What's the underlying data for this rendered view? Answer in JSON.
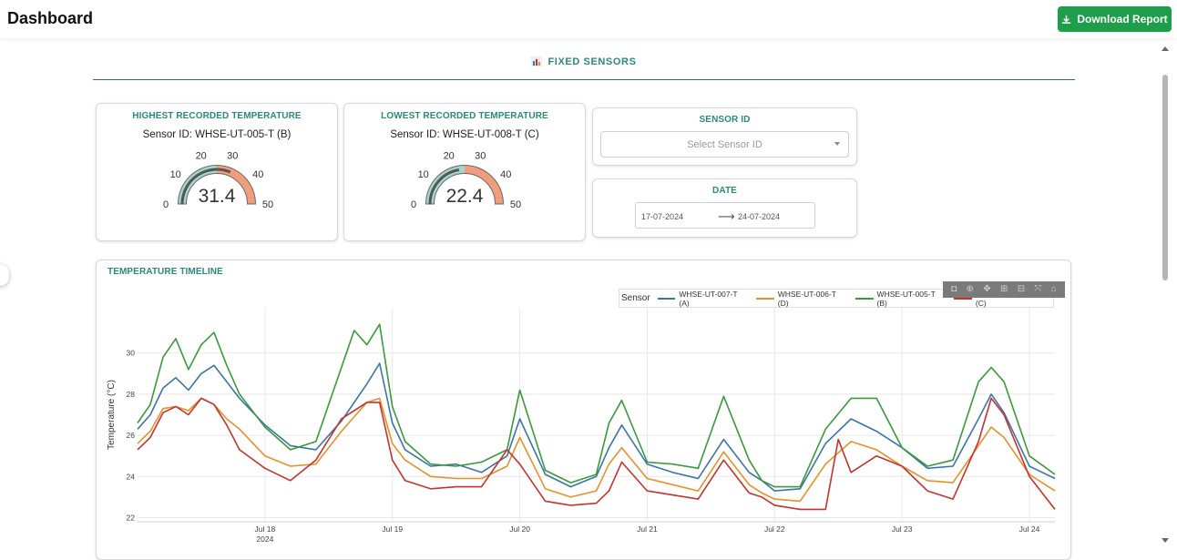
{
  "header": {
    "title": "Dashboard",
    "download_label": "Download Report"
  },
  "section": {
    "title": "FIXED SENSORS",
    "icon": "bar-chart-icon"
  },
  "highest_card": {
    "title": "HIGHEST RECORDED TEMPERATURE",
    "sensor": "Sensor ID: WHSE-UT-005-T (B)",
    "value": "31.4",
    "value_num": 31.4,
    "ticks": [
      "0",
      "10",
      "20",
      "30",
      "40",
      "50"
    ]
  },
  "lowest_card": {
    "title": "LOWEST RECORDED TEMPERATURE",
    "sensor": "Sensor ID: WHSE-UT-008-T (C)",
    "value": "22.4",
    "value_num": 22.4,
    "ticks": [
      "0",
      "10",
      "20",
      "30",
      "40",
      "50"
    ]
  },
  "gauge_colors": {
    "low": "#a6d5cc",
    "high": "#f29c7e",
    "bar": "#555555"
  },
  "sensor_filter": {
    "title": "SENSOR ID",
    "placeholder": "Select Sensor ID"
  },
  "date_filter": {
    "title": "DATE",
    "start": "17-07-2024",
    "end": "24-07-2024"
  },
  "timeline": {
    "title": "TEMPERATURE TIMELINE",
    "legend_title": "Sensor",
    "series": [
      {
        "name": "WHSE-UT-007-T (A)",
        "color": "#3b75a8"
      },
      {
        "name": "WHSE-UT-006-T (D)",
        "color": "#e8902a"
      },
      {
        "name": "WHSE-UT-005-T (B)",
        "color": "#3a9a3a"
      },
      {
        "name": "WHSE-UT-008-T (C)",
        "color": "#c4332c"
      }
    ],
    "modebar_icons": [
      "camera-icon",
      "zoom-icon",
      "pan-icon",
      "zoom-in-icon",
      "zoom-out-icon",
      "autoscale-icon",
      "home-icon"
    ]
  },
  "chart_data": {
    "type": "line",
    "ylabel": "Temperature (°C)",
    "xlabel": "",
    "ylim": [
      21.8,
      32.2
    ],
    "yticks": [
      22,
      24,
      26,
      28,
      30
    ],
    "xlim": [
      17.0,
      24.2
    ],
    "xticks": [
      {
        "value": 18.0,
        "label": "Jul 18",
        "sub": "2024"
      },
      {
        "value": 19.0,
        "label": "Jul 19",
        "sub": ""
      },
      {
        "value": 20.0,
        "label": "Jul 20",
        "sub": ""
      },
      {
        "value": 21.0,
        "label": "Jul 21",
        "sub": ""
      },
      {
        "value": 22.0,
        "label": "Jul 22",
        "sub": ""
      },
      {
        "value": 23.0,
        "label": "Jul 23",
        "sub": ""
      },
      {
        "value": 24.0,
        "label": "Jul 24",
        "sub": ""
      }
    ],
    "grid": true,
    "legend": "top-right",
    "series": [
      {
        "name": "WHSE-UT-007-T (A)",
        "color": "#3b75a8",
        "x": [
          17.0,
          17.1,
          17.2,
          17.3,
          17.4,
          17.5,
          17.6,
          17.7,
          17.8,
          18.0,
          18.2,
          18.4,
          18.6,
          18.8,
          18.9,
          19.0,
          19.1,
          19.3,
          19.5,
          19.7,
          19.9,
          20.0,
          20.2,
          20.4,
          20.6,
          20.7,
          20.8,
          21.0,
          21.2,
          21.4,
          21.6,
          21.8,
          21.9,
          22.0,
          22.2,
          22.4,
          22.6,
          22.8,
          23.0,
          23.2,
          23.4,
          23.6,
          23.7,
          23.8,
          24.0,
          24.2
        ],
        "y": [
          26.3,
          27.0,
          28.3,
          28.8,
          28.2,
          29.0,
          29.4,
          28.6,
          27.8,
          26.5,
          25.5,
          25.3,
          26.7,
          28.5,
          29.5,
          26.6,
          25.3,
          24.5,
          24.6,
          24.2,
          25.0,
          26.8,
          24.1,
          23.5,
          24.0,
          25.4,
          26.5,
          24.6,
          24.2,
          23.9,
          25.8,
          24.2,
          23.8,
          23.3,
          23.4,
          25.6,
          26.8,
          26.2,
          25.4,
          24.4,
          24.5,
          26.8,
          28.0,
          27.1,
          24.5,
          23.9
        ]
      },
      {
        "name": "WHSE-UT-006-T (D)",
        "color": "#e8902a",
        "x": [
          17.0,
          17.1,
          17.2,
          17.3,
          17.4,
          17.5,
          17.6,
          17.7,
          17.8,
          18.0,
          18.2,
          18.4,
          18.6,
          18.8,
          18.9,
          19.0,
          19.1,
          19.3,
          19.5,
          19.7,
          19.9,
          20.0,
          20.2,
          20.4,
          20.6,
          20.7,
          20.8,
          21.0,
          21.2,
          21.4,
          21.6,
          21.8,
          21.9,
          22.0,
          22.2,
          22.4,
          22.6,
          22.8,
          23.0,
          23.2,
          23.4,
          23.6,
          23.7,
          23.8,
          24.0,
          24.2
        ],
        "y": [
          25.6,
          26.2,
          27.3,
          27.4,
          27.2,
          27.8,
          27.5,
          26.8,
          26.3,
          25.0,
          24.5,
          24.6,
          26.2,
          27.6,
          27.8,
          25.6,
          24.8,
          24.0,
          23.9,
          23.9,
          24.5,
          25.9,
          23.4,
          23.0,
          23.3,
          24.6,
          25.4,
          23.9,
          23.6,
          23.3,
          25.2,
          23.6,
          23.2,
          22.9,
          22.8,
          24.6,
          25.7,
          25.3,
          24.5,
          23.8,
          23.7,
          25.5,
          26.4,
          25.9,
          24.1,
          23.3
        ]
      },
      {
        "name": "WHSE-UT-005-T (B)",
        "color": "#3a9a3a",
        "x": [
          17.0,
          17.1,
          17.2,
          17.3,
          17.4,
          17.5,
          17.6,
          17.7,
          17.8,
          18.0,
          18.2,
          18.4,
          18.6,
          18.7,
          18.8,
          18.9,
          19.0,
          19.1,
          19.3,
          19.5,
          19.7,
          19.9,
          20.0,
          20.2,
          20.4,
          20.6,
          20.7,
          20.8,
          21.0,
          21.2,
          21.4,
          21.6,
          21.8,
          21.9,
          22.0,
          22.2,
          22.4,
          22.6,
          22.8,
          23.0,
          23.2,
          23.4,
          23.6,
          23.7,
          23.8,
          24.0,
          24.2
        ],
        "y": [
          26.6,
          27.5,
          29.8,
          30.7,
          29.2,
          30.4,
          31.0,
          29.4,
          28.0,
          26.4,
          25.3,
          25.7,
          29.3,
          31.1,
          30.4,
          31.4,
          27.4,
          25.7,
          24.6,
          24.5,
          24.7,
          25.3,
          28.2,
          24.3,
          23.7,
          24.1,
          26.6,
          27.7,
          24.7,
          24.6,
          24.4,
          27.9,
          24.8,
          23.8,
          23.5,
          23.5,
          26.3,
          27.8,
          27.8,
          25.4,
          24.5,
          24.8,
          28.6,
          29.3,
          28.6,
          25.0,
          24.1
        ]
      },
      {
        "name": "WHSE-UT-008-T (C)",
        "color": "#c4332c",
        "x": [
          17.0,
          17.1,
          17.2,
          17.3,
          17.4,
          17.5,
          17.6,
          17.7,
          17.8,
          18.0,
          18.2,
          18.4,
          18.6,
          18.8,
          18.9,
          19.0,
          19.1,
          19.3,
          19.5,
          19.7,
          19.9,
          20.0,
          20.2,
          20.4,
          20.6,
          20.7,
          20.8,
          21.0,
          21.2,
          21.4,
          21.6,
          21.8,
          21.9,
          22.0,
          22.2,
          22.4,
          22.5,
          22.6,
          22.8,
          23.0,
          23.2,
          23.4,
          23.6,
          23.7,
          23.8,
          24.0,
          24.2
        ],
        "y": [
          25.3,
          25.9,
          27.1,
          27.4,
          27.0,
          27.8,
          27.5,
          26.5,
          25.3,
          24.4,
          23.8,
          24.8,
          26.8,
          27.6,
          27.6,
          24.8,
          23.8,
          23.4,
          23.5,
          23.5,
          25.3,
          24.6,
          22.8,
          22.6,
          22.7,
          23.3,
          24.7,
          23.3,
          23.1,
          22.9,
          24.8,
          23.2,
          23.0,
          22.6,
          22.4,
          22.4,
          25.8,
          24.2,
          25.0,
          24.5,
          23.3,
          22.9,
          25.7,
          27.8,
          27.0,
          24.0,
          22.4
        ]
      }
    ]
  }
}
